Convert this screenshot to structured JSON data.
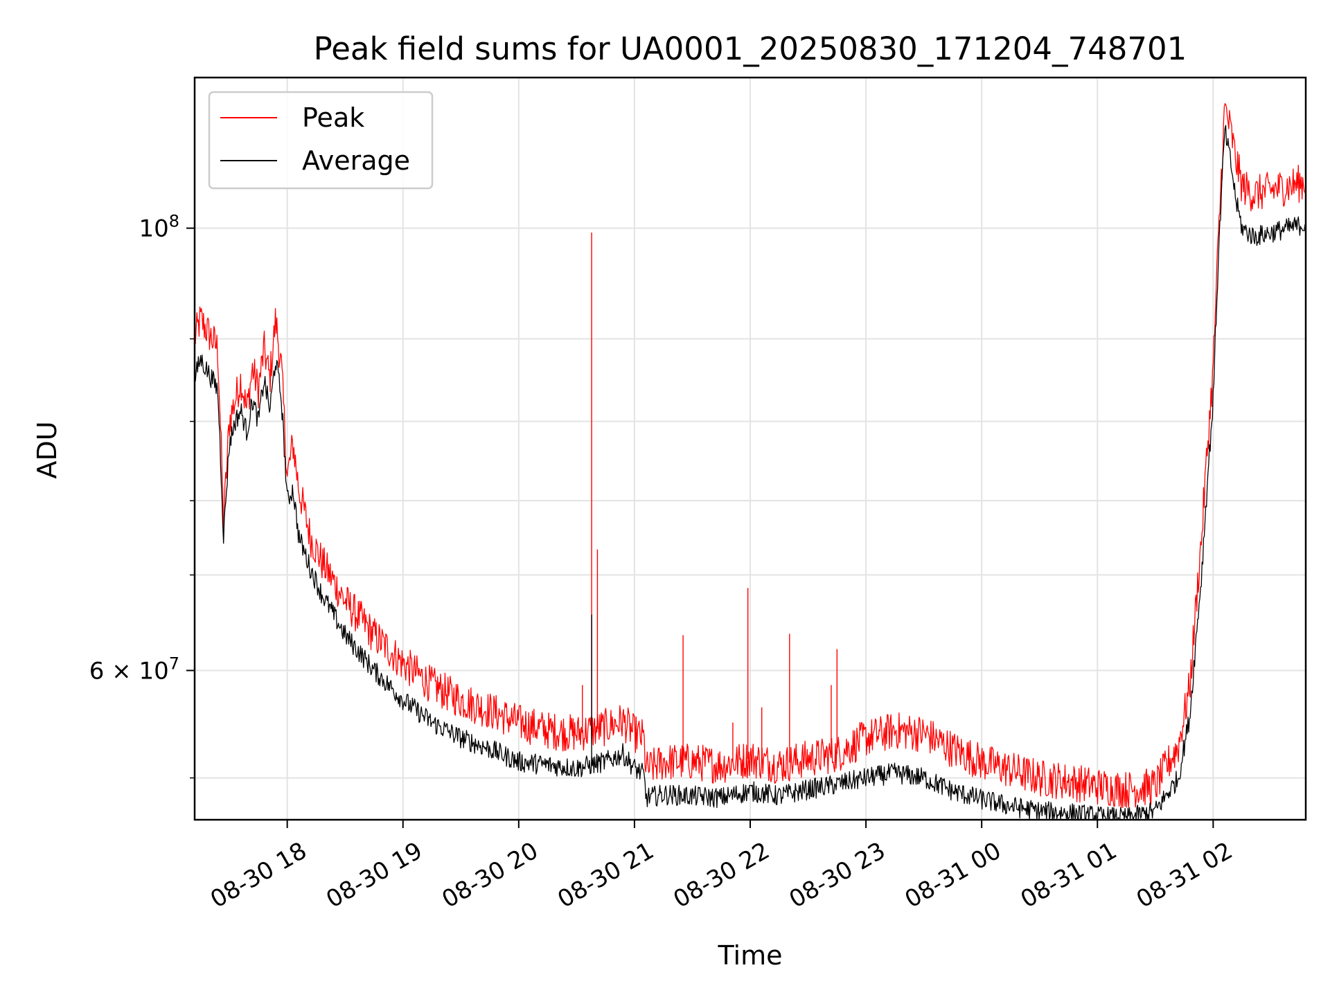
{
  "chart_data": {
    "type": "line",
    "title": "Peak field sums for UA0001_20250830_171204_748701",
    "xlabel": "Time",
    "ylabel": "ADU",
    "y_scale": "log",
    "ylim": [
      50500000,
      119000000
    ],
    "x_unit": "hours since 08-30 17:00",
    "xlim": [
      0.2,
      9.8
    ],
    "grid": true,
    "legend_position": "top-left",
    "x_ticks": [
      {
        "value": 1,
        "label": "08-30 18"
      },
      {
        "value": 2,
        "label": "08-30 19"
      },
      {
        "value": 3,
        "label": "08-30 20"
      },
      {
        "value": 4,
        "label": "08-30 21"
      },
      {
        "value": 5,
        "label": "08-30 22"
      },
      {
        "value": 6,
        "label": "08-30 23"
      },
      {
        "value": 7,
        "label": "08-31 00"
      },
      {
        "value": 8,
        "label": "08-31 01"
      },
      {
        "value": 9,
        "label": "08-31 02"
      }
    ],
    "y_major_ticks": [
      {
        "value": 60000000,
        "label": "6 × 10",
        "exp": "7"
      },
      {
        "value": 100000000,
        "label": "10",
        "exp": "8"
      }
    ],
    "y_minor_ticks": [
      53000000,
      67000000,
      73000000,
      80000000,
      88000000
    ],
    "series": [
      {
        "name": "Peak",
        "color": "#ff0000",
        "x": [
          0.2,
          0.25,
          0.3,
          0.35,
          0.4,
          0.45,
          0.5,
          0.55,
          0.6,
          0.65,
          0.7,
          0.75,
          0.8,
          0.85,
          0.9,
          0.95,
          1.0,
          1.05,
          1.1,
          1.2,
          1.3,
          1.4,
          1.5,
          1.75,
          2.0,
          2.25,
          2.5,
          2.75,
          3.0,
          3.25,
          3.5,
          3.75,
          3.9,
          4.0,
          4.08,
          4.1,
          4.25,
          4.5,
          4.75,
          5.0,
          5.25,
          5.5,
          5.75,
          6.0,
          6.25,
          6.5,
          6.75,
          7.0,
          7.25,
          7.5,
          7.75,
          8.0,
          8.25,
          8.5,
          8.7,
          8.8,
          8.9,
          9.0,
          9.05,
          9.1,
          9.15,
          9.2,
          9.25,
          9.35,
          9.5,
          9.65,
          9.8
        ],
        "values": [
          88000000,
          90000000,
          89000000,
          88000000,
          87000000,
          71000000,
          80000000,
          82000000,
          84000000,
          81000000,
          85000000,
          83000000,
          87000000,
          84000000,
          90000000,
          85000000,
          75000000,
          78000000,
          74000000,
          70000000,
          68000000,
          66500000,
          65000000,
          62500000,
          60500000,
          59000000,
          58000000,
          57300000,
          56500000,
          56000000,
          55800000,
          56200000,
          56600000,
          55800000,
          55500000,
          53500000,
          54000000,
          54000000,
          53800000,
          54200000,
          53800000,
          54200000,
          54500000,
          55500000,
          56000000,
          55800000,
          54800000,
          54000000,
          53500000,
          53000000,
          52800000,
          52500000,
          52300000,
          52500000,
          55000000,
          59000000,
          70000000,
          85000000,
          100000000,
          115000000,
          112000000,
          108000000,
          105000000,
          104000000,
          104500000,
          105000000,
          105500000
        ]
      },
      {
        "name": "Average",
        "color": "#000000",
        "x": [
          0.2,
          0.25,
          0.3,
          0.35,
          0.4,
          0.45,
          0.5,
          0.55,
          0.6,
          0.65,
          0.7,
          0.75,
          0.8,
          0.85,
          0.9,
          0.95,
          1.0,
          1.05,
          1.1,
          1.2,
          1.3,
          1.4,
          1.5,
          1.75,
          2.0,
          2.25,
          2.5,
          2.75,
          3.0,
          3.25,
          3.5,
          3.75,
          3.9,
          4.0,
          4.08,
          4.1,
          4.25,
          4.5,
          4.75,
          5.0,
          5.25,
          5.5,
          5.75,
          6.0,
          6.25,
          6.5,
          6.75,
          7.0,
          7.25,
          7.5,
          7.75,
          8.0,
          8.25,
          8.5,
          8.7,
          8.8,
          8.9,
          9.0,
          9.05,
          9.1,
          9.15,
          9.2,
          9.25,
          9.35,
          9.5,
          9.65,
          9.8
        ],
        "values": [
          84000000,
          86000000,
          85000000,
          84000000,
          83000000,
          70000000,
          78000000,
          80000000,
          81000000,
          79000000,
          82000000,
          80000000,
          84000000,
          81000000,
          86000000,
          82000000,
          73000000,
          74000000,
          70000000,
          67500000,
          65500000,
          64000000,
          62500000,
          60000000,
          58000000,
          56500000,
          55500000,
          54800000,
          54000000,
          53800000,
          53600000,
          54000000,
          54500000,
          53600000,
          53200000,
          51800000,
          52000000,
          51900000,
          51800000,
          52200000,
          51900000,
          52300000,
          52600000,
          53000000,
          53300000,
          53000000,
          52200000,
          51700000,
          51300000,
          51000000,
          50900000,
          50700000,
          50600000,
          51000000,
          53000000,
          57000000,
          67000000,
          82000000,
          98000000,
          112000000,
          108000000,
          103000000,
          100000000,
          99000000,
          99500000,
          100000000,
          100500000
        ]
      }
    ],
    "spikes": [
      {
        "series": "Peak",
        "x": 3.63,
        "value": 99500000
      },
      {
        "series": "Peak",
        "x": 3.68,
        "value": 69000000
      },
      {
        "series": "Peak",
        "x": 3.55,
        "value": 59000000
      },
      {
        "series": "Peak",
        "x": 4.42,
        "value": 62500000
      },
      {
        "series": "Peak",
        "x": 4.98,
        "value": 66000000
      },
      {
        "series": "Peak",
        "x": 5.34,
        "value": 62600000
      },
      {
        "series": "Peak",
        "x": 5.75,
        "value": 61500000
      },
      {
        "series": "Peak",
        "x": 5.7,
        "value": 59000000
      },
      {
        "series": "Peak",
        "x": 4.85,
        "value": 56500000
      },
      {
        "series": "Peak",
        "x": 5.1,
        "value": 57500000
      },
      {
        "series": "Average",
        "x": 3.63,
        "value": 64000000
      }
    ]
  }
}
